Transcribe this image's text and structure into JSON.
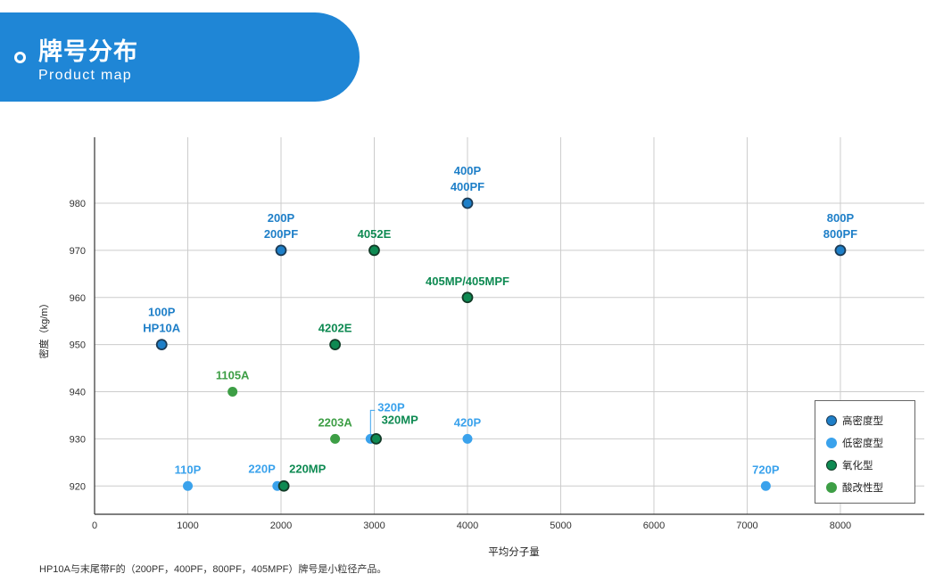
{
  "banner": {
    "title": "牌号分布",
    "subtitle": "Product map"
  },
  "footnote": "HP10A与末尾带F的（200PF，400PF，800PF，405MPF）牌号是小粒径产品。",
  "legend": [
    {
      "name": "高密度型",
      "color": "#1e7fc8",
      "stroke": "#1c3b55"
    },
    {
      "name": "低密度型",
      "color": "#3aa2ec",
      "stroke": "none"
    },
    {
      "name": "氧化型",
      "color": "#0e8a52",
      "stroke": "#123b27"
    },
    {
      "name": "酸改性型",
      "color": "#3d9e45",
      "stroke": "none"
    }
  ],
  "chart_data": {
    "type": "scatter",
    "xlabel": "平均分子量",
    "ylabel": "密度（kg/m）",
    "xlim": [
      0,
      8900
    ],
    "ylim": [
      914,
      994
    ],
    "x_ticks": [
      0,
      1000,
      2000,
      3000,
      4000,
      5000,
      6000,
      7000,
      8000
    ],
    "y_ticks": [
      920,
      930,
      940,
      950,
      960,
      970,
      980
    ],
    "grid": true,
    "legend_position": "bottom-right",
    "series": [
      {
        "name": "高密度型",
        "points": [
          {
            "x": 720,
            "y": 950,
            "label": [
              "100P",
              "HP10A"
            ]
          },
          {
            "x": 2000,
            "y": 970,
            "label": [
              "200P",
              "200PF"
            ]
          },
          {
            "x": 4000,
            "y": 980,
            "label": [
              "400P",
              "400PF"
            ]
          },
          {
            "x": 8000,
            "y": 970,
            "label": [
              "800P",
              "800PF"
            ]
          }
        ]
      },
      {
        "name": "低密度型",
        "points": [
          {
            "x": 1000,
            "y": 920,
            "label": [
              "110P"
            ]
          },
          {
            "x": 1960,
            "y": 920,
            "label": [
              "220P"
            ]
          },
          {
            "x": 2960,
            "y": 930,
            "label": [
              "320P"
            ]
          },
          {
            "x": 4000,
            "y": 930,
            "label": [
              "420P"
            ]
          },
          {
            "x": 7200,
            "y": 920,
            "label": [
              "720P"
            ]
          }
        ]
      },
      {
        "name": "氧化型",
        "points": [
          {
            "x": 3000,
            "y": 970,
            "label": [
              "4052E"
            ]
          },
          {
            "x": 4000,
            "y": 960,
            "label": [
              "405MP/405MPF"
            ]
          },
          {
            "x": 2580,
            "y": 950,
            "label": [
              "4202E"
            ]
          },
          {
            "x": 2030,
            "y": 920,
            "label": [
              "220MP"
            ]
          },
          {
            "x": 3020,
            "y": 930,
            "label": [
              "320MP"
            ]
          }
        ]
      },
      {
        "name": "酸改性型",
        "points": [
          {
            "x": 1480,
            "y": 940,
            "label": [
              "1105A"
            ]
          },
          {
            "x": 2580,
            "y": 930,
            "label": [
              "2203A"
            ]
          }
        ]
      }
    ]
  }
}
